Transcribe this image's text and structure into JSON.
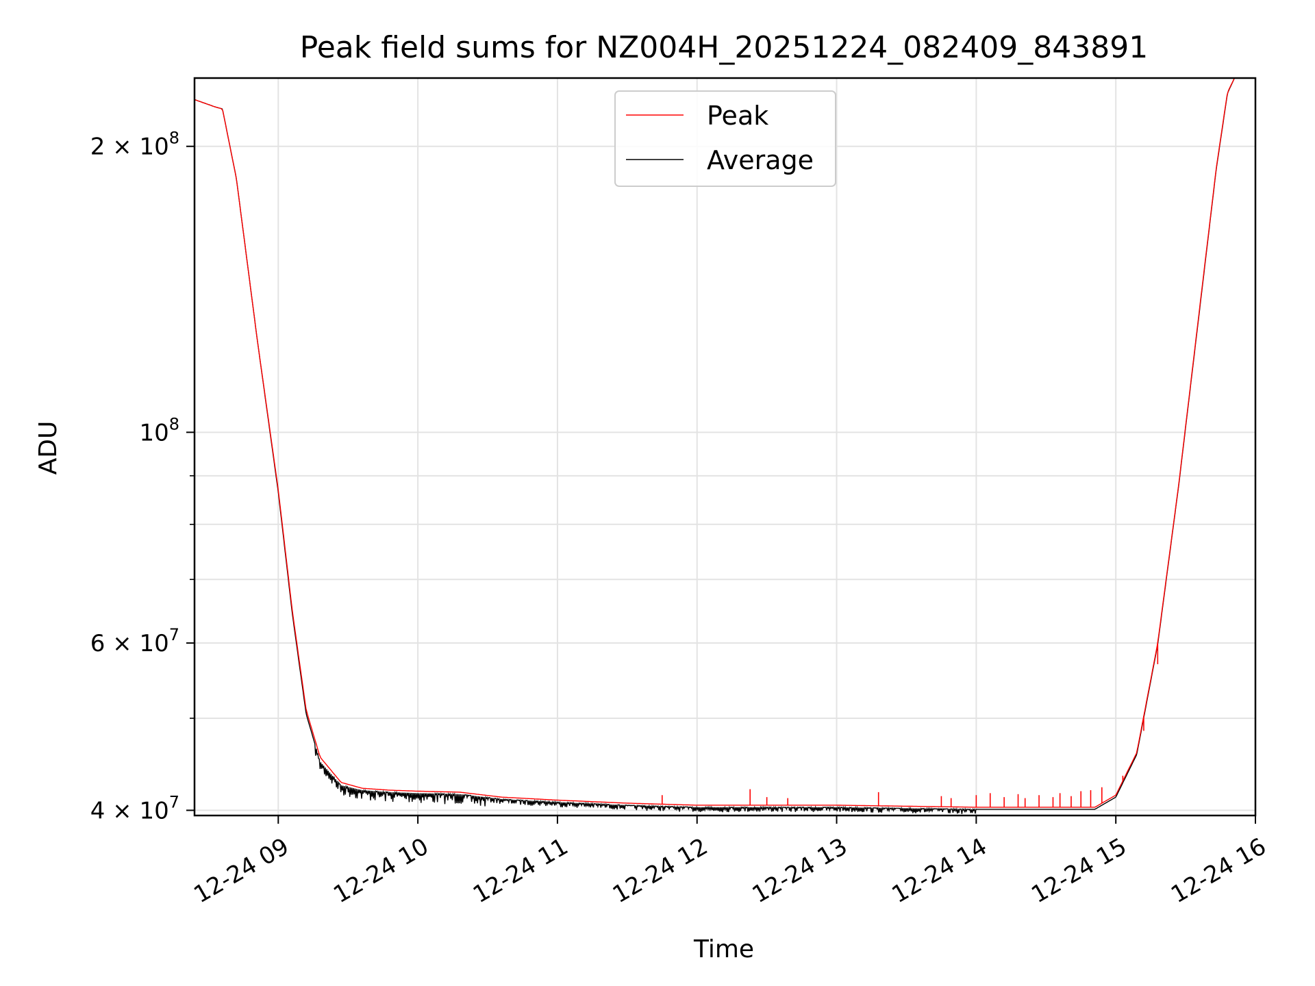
{
  "chart_data": {
    "type": "line",
    "title": "Peak field sums for NZ004H_20251224_082409_843891",
    "xlabel": "Time",
    "ylabel": "ADU",
    "yscale": "log",
    "xlim_hours": [
      8.4,
      16.0
    ],
    "ylim": [
      39500000,
      236000000
    ],
    "x_tick_values": [
      9,
      10,
      11,
      12,
      13,
      14,
      15,
      16
    ],
    "x_tick_labels": [
      "12-24 09",
      "12-24 10",
      "12-24 11",
      "12-24 12",
      "12-24 13",
      "12-24 14",
      "12-24 15",
      "12-24 16"
    ],
    "y_major_ticks": [
      {
        "value": 40000000,
        "mantissa": "4",
        "exp": "7"
      },
      {
        "value": 60000000,
        "mantissa": "6",
        "exp": "7"
      },
      {
        "value": 100000000,
        "mantissa": "",
        "exp": "8"
      },
      {
        "value": 200000000,
        "mantissa": "2",
        "exp": "8"
      }
    ],
    "y_minor_ticks": [
      50000000,
      70000000,
      80000000,
      90000000
    ],
    "grid": true,
    "legend_position": "upper-center",
    "series": [
      {
        "name": "Peak",
        "color": "#ff0000",
        "x_hours": [
          8.4,
          8.55,
          8.6,
          8.7,
          8.85,
          9.0,
          9.1,
          9.2,
          9.3,
          9.45,
          9.6,
          9.8,
          10.0,
          10.3,
          10.6,
          11.0,
          11.5,
          12.0,
          12.5,
          13.0,
          13.5,
          14.0,
          14.5,
          14.85,
          15.0,
          15.15,
          15.3,
          15.45,
          15.6,
          15.72,
          15.8,
          15.85
        ],
        "values": [
          224000000,
          220000000,
          219000000,
          185000000,
          125000000,
          87000000,
          65000000,
          51000000,
          45500000,
          42800000,
          42200000,
          42000000,
          41900000,
          41800000,
          41300000,
          41000000,
          40700000,
          40500000,
          40500000,
          40500000,
          40400000,
          40300000,
          40300000,
          40300000,
          41500000,
          46000000,
          60000000,
          88000000,
          135000000,
          190000000,
          228000000,
          236000000
        ],
        "spikes": [
          {
            "x": 11.75,
            "value": 41500000
          },
          {
            "x": 12.38,
            "value": 42100000
          },
          {
            "x": 12.5,
            "value": 41300000
          },
          {
            "x": 12.65,
            "value": 41200000
          },
          {
            "x": 13.3,
            "value": 41800000
          },
          {
            "x": 13.75,
            "value": 41400000
          },
          {
            "x": 13.82,
            "value": 41200000
          },
          {
            "x": 14.0,
            "value": 41500000
          },
          {
            "x": 14.1,
            "value": 41700000
          },
          {
            "x": 14.2,
            "value": 41300000
          },
          {
            "x": 14.3,
            "value": 41600000
          },
          {
            "x": 14.35,
            "value": 41200000
          },
          {
            "x": 14.45,
            "value": 41500000
          },
          {
            "x": 14.55,
            "value": 41300000
          },
          {
            "x": 14.6,
            "value": 41700000
          },
          {
            "x": 14.68,
            "value": 41400000
          },
          {
            "x": 14.75,
            "value": 41900000
          },
          {
            "x": 14.82,
            "value": 42000000
          },
          {
            "x": 14.9,
            "value": 42300000
          },
          {
            "x": 15.05,
            "value": 43500000
          },
          {
            "x": 15.12,
            "value": 45000000
          },
          {
            "x": 15.2,
            "value": 48500000
          },
          {
            "x": 15.3,
            "value": 57000000
          }
        ]
      },
      {
        "name": "Average",
        "color": "#000000",
        "x_hours": [
          8.4,
          8.55,
          8.6,
          8.7,
          8.85,
          9.0,
          9.1,
          9.2,
          9.3,
          9.45,
          9.6,
          9.8,
          10.0,
          10.3,
          10.6,
          11.0,
          11.5,
          12.0,
          12.5,
          13.0,
          13.5,
          14.0,
          14.5,
          14.85,
          15.0,
          15.15,
          15.3,
          15.45,
          15.6,
          15.72,
          15.8,
          15.85
        ],
        "values": [
          224000000,
          220000000,
          219000000,
          185000000,
          125000000,
          86500000,
          64500000,
          50500000,
          45000000,
          42500000,
          42000000,
          41800000,
          41700000,
          41600000,
          41100000,
          40800000,
          40500000,
          40300000,
          40300000,
          40300000,
          40200000,
          40100000,
          40100000,
          40100000,
          41300000,
          45800000,
          59800000,
          87800000,
          134500000,
          189500000,
          227500000,
          236000000
        ],
        "noise_range_hours": [
          9.25,
          14.0
        ]
      }
    ]
  }
}
